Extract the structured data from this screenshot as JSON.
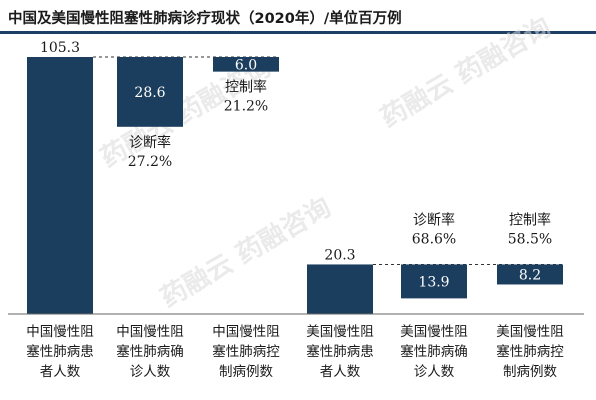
{
  "title": "中国及美国慢性阻塞性肺病诊疗现状（2020年）/单位百万例",
  "colors": {
    "bar": "#1b3d5e",
    "title_rule": "#1c3f63",
    "text": "#1a1a1a",
    "watermark": "#d9d9d9"
  },
  "watermark": "药融云 药融咨询",
  "chart_data": {
    "type": "bar",
    "subtype": "waterfall",
    "title": "中国及美国慢性阻塞性肺病诊疗现状（2020年）/单位百万例",
    "unit": "百万例",
    "xlabel": "",
    "ylabel": "",
    "ylim": [
      0,
      110
    ],
    "grid": false,
    "legend": "none",
    "categories": [
      "中国慢性阻塞性肺病患者人数",
      "中国慢性阻塞性肺病确诊人数",
      "中国慢性阻塞性肺病控制病例数",
      "美国慢性阻塞性肺病患者人数",
      "美国慢性阻塞性肺病确诊人数",
      "美国慢性阻塞性肺病控制病例数"
    ],
    "category_lines": [
      [
        "中国慢性阻",
        "塞性肺病患",
        "者人数"
      ],
      [
        "中国慢性阻",
        "塞性肺病确",
        "诊人数"
      ],
      [
        "中国慢性阻",
        "塞性肺病控",
        "制病例数"
      ],
      [
        "美国慢性阻",
        "塞性肺病患",
        "者人数"
      ],
      [
        "美国慢性阻",
        "塞性肺病确",
        "诊人数"
      ],
      [
        "美国慢性阻",
        "塞性肺病控",
        "制病例数"
      ]
    ],
    "values": [
      105.3,
      28.6,
      6.0,
      20.3,
      13.9,
      8.2
    ],
    "value_labels": [
      "105.3",
      "28.6",
      "6.0",
      "20.3",
      "13.9",
      "8.2"
    ],
    "bars": [
      {
        "bottom": 0,
        "top": 105.3
      },
      {
        "bottom": 76.7,
        "top": 105.3
      },
      {
        "bottom": 99.3,
        "top": 105.3
      },
      {
        "bottom": 0,
        "top": 20.3
      },
      {
        "bottom": 6.4,
        "top": 20.3
      },
      {
        "bottom": 12.1,
        "top": 20.3
      }
    ],
    "annotations": [
      {
        "bar": 1,
        "name": "诊断率",
        "value": "27.2%"
      },
      {
        "bar": 2,
        "name": "控制率",
        "value": "21.2%"
      },
      {
        "bar": 4,
        "name": "诊断率",
        "value": "68.6%"
      },
      {
        "bar": 5,
        "name": "控制率",
        "value": "58.5%"
      }
    ]
  }
}
